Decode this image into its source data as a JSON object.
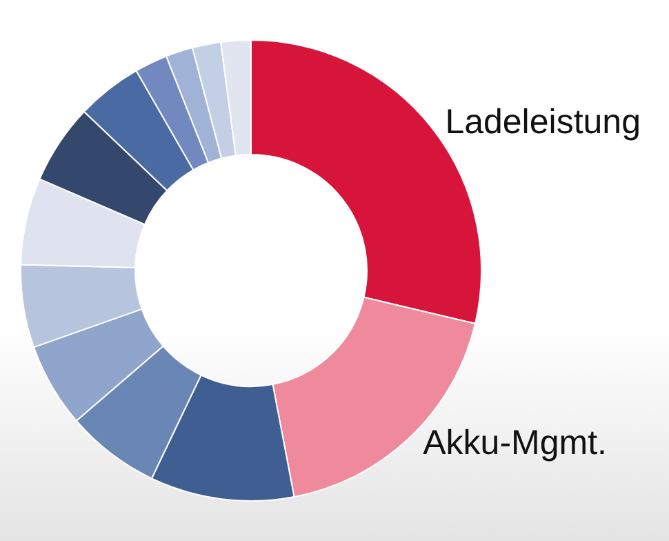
{
  "chart_data": {
    "type": "donut",
    "categories": [
      "Ladeleistung",
      "Akku-Mgmt.",
      null,
      null,
      null,
      null,
      null,
      null,
      null,
      null,
      null,
      null,
      null
    ],
    "values": [
      28.7,
      18.3,
      10.1,
      6.6,
      5.9,
      5.8,
      6.1,
      5.6,
      4.6,
      2.3,
      1.9,
      2.0,
      2.1
    ],
    "colors": [
      "#d7153a",
      "#ee8a9c",
      "#3f5e92",
      "#6a86b5",
      "#8fa5cc",
      "#b6c4de",
      "#dfe3ef",
      "#34486e",
      "#4a6aa4",
      "#7189bf",
      "#a0b2d5",
      "#c3cfe5",
      "#e0e5ef"
    ],
    "legend": false
  }
}
